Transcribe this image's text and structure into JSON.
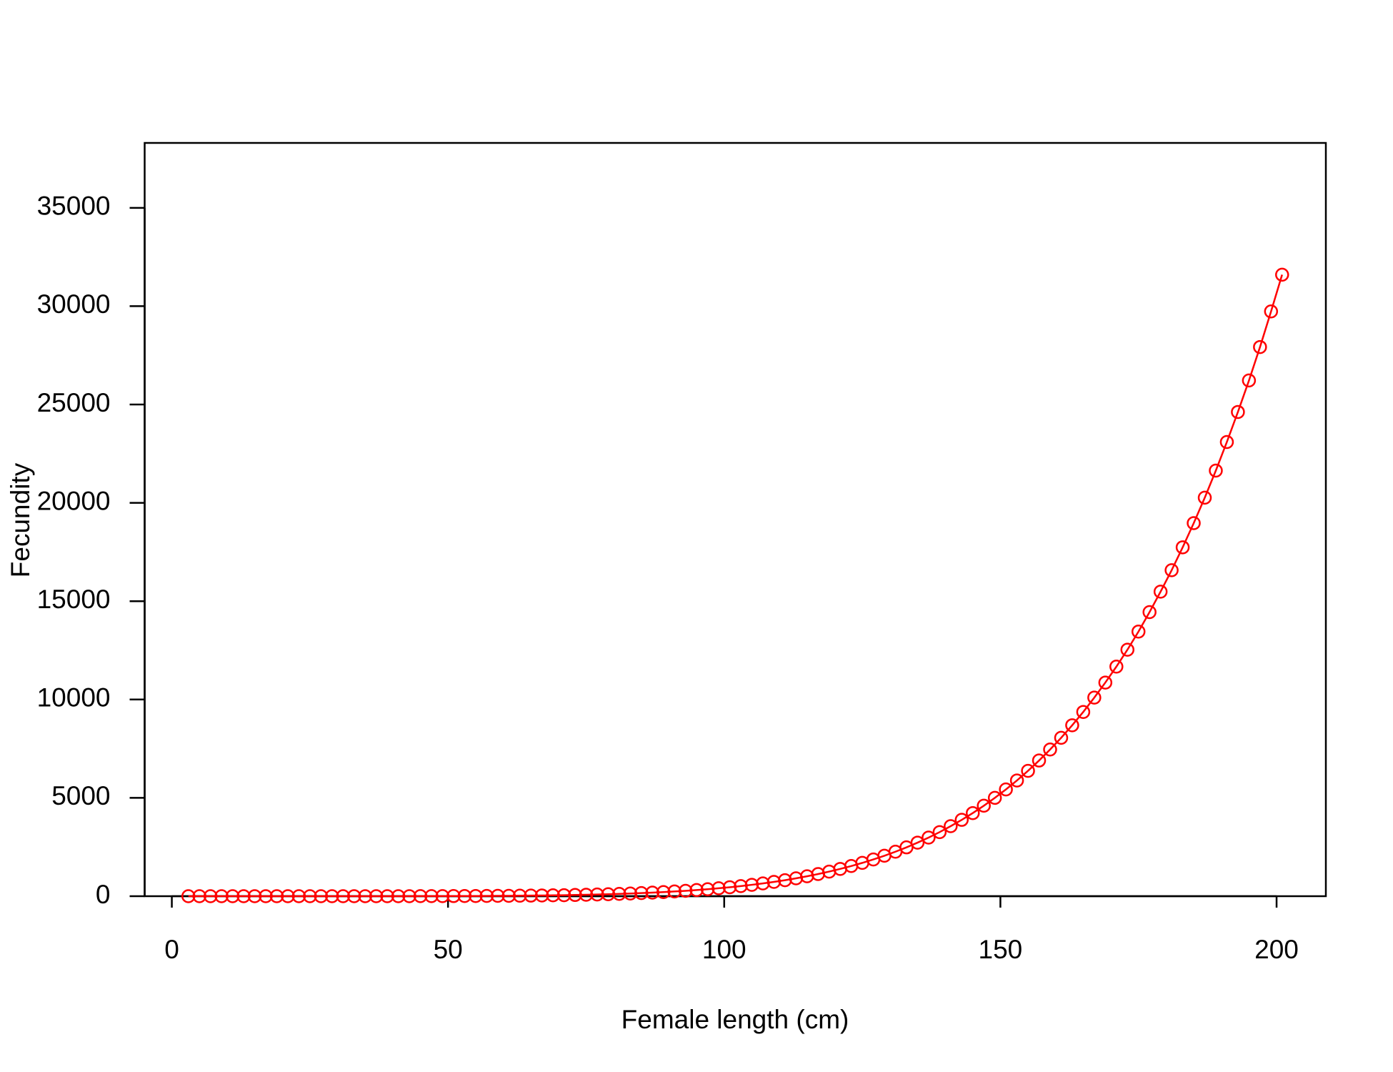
{
  "chart_data": {
    "type": "line",
    "x_label": "Female length (cm)",
    "y_label": "Fecundity",
    "x": [
      3,
      5,
      7,
      9,
      11,
      13,
      15,
      17,
      19,
      21,
      23,
      25,
      27,
      29,
      31,
      33,
      35,
      37,
      39,
      41,
      43,
      45,
      47,
      49,
      51,
      53,
      55,
      57,
      59,
      61,
      63,
      65,
      67,
      69,
      71,
      73,
      75,
      77,
      79,
      81,
      83,
      85,
      87,
      89,
      91,
      93,
      95,
      97,
      99,
      101,
      103,
      105,
      107,
      109,
      111,
      113,
      115,
      117,
      119,
      121,
      123,
      125,
      127,
      129,
      131,
      133,
      135,
      137,
      139,
      141,
      143,
      145,
      147,
      149,
      151,
      153,
      155,
      157,
      159,
      161,
      163,
      165,
      167,
      169,
      171,
      173,
      175,
      177,
      179,
      181,
      183,
      185,
      187,
      189,
      191,
      193,
      195,
      197,
      199,
      201
    ],
    "series": [
      {
        "color": "#ff0000",
        "marker": "circle",
        "values": [
          0,
          0,
          0,
          0,
          0,
          0,
          0,
          0,
          0,
          0,
          0,
          0,
          0,
          0,
          0,
          0,
          1,
          1,
          1,
          2,
          2,
          3,
          4,
          5,
          7,
          9,
          11,
          13,
          17,
          20,
          25,
          30,
          36,
          44,
          52,
          62,
          73,
          86,
          100,
          117,
          136,
          158,
          182,
          209,
          240,
          274,
          313,
          355,
          403,
          456,
          514,
          579,
          650,
          728,
          814,
          909,
          1013,
          1127,
          1251,
          1387,
          1534,
          1694,
          1869,
          2057,
          2262,
          2483,
          2723,
          2981,
          3259,
          3562,
          3882,
          4226,
          4600,
          5000,
          5427,
          5884,
          6374,
          6898,
          7457,
          8054,
          8691,
          9368,
          10097,
          10862,
          11673,
          12533,
          13455,
          14445,
          15484,
          16573,
          17739,
          18968,
          20263,
          21640,
          23094,
          24621,
          26221,
          27923,
          29733,
          31600
        ]
      }
    ],
    "xlim": [
      -4.92,
      208.92
    ],
    "ylim": [
      0,
      38300
    ],
    "xticks": [
      0,
      50,
      100,
      150,
      200
    ],
    "yticks": [
      0,
      5000,
      10000,
      15000,
      20000,
      25000,
      30000,
      35000
    ]
  }
}
